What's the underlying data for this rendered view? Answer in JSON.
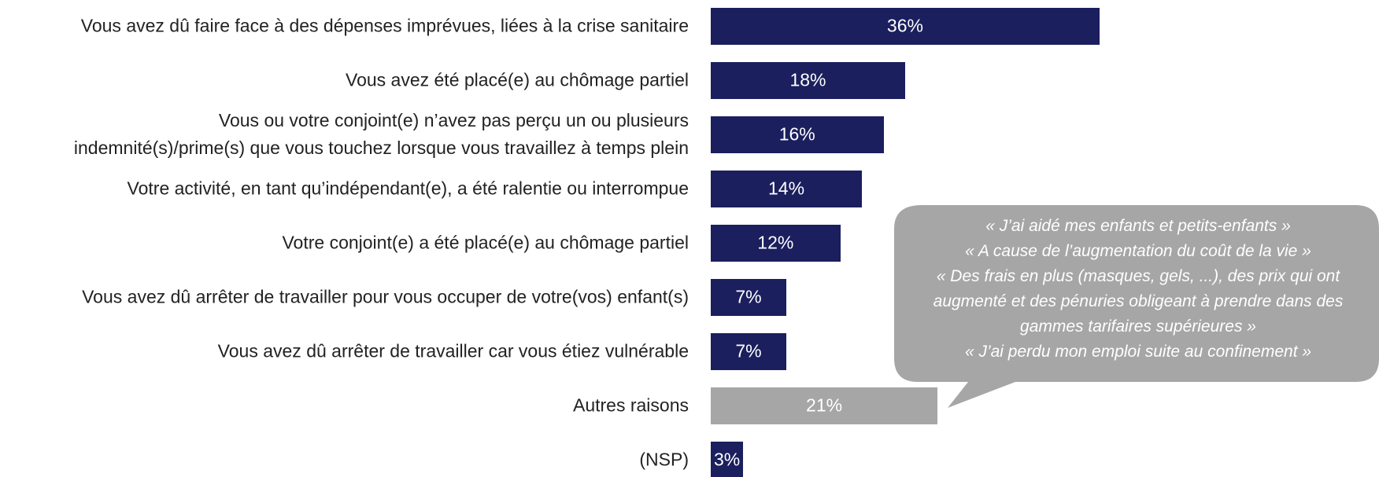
{
  "chart_data": {
    "type": "bar",
    "orientation": "horizontal",
    "categories": [
      "Vous avez dû faire face à des dépenses imprévues, liées à la crise sanitaire",
      "Vous avez été placé(e) au chômage partiel",
      "Vous ou votre conjoint(e) n’avez pas perçu un ou plusieurs\nindemnité(s)/prime(s) que vous touchez lorsque vous travaillez à temps plein",
      "Votre activité, en tant qu’indépendant(e), a été ralentie ou interrompue",
      "Votre conjoint(e) a été placé(e) au chômage partiel",
      "Vous avez dû arrêter de travailler pour vous occuper de votre(vos) enfant(s)",
      "Vous avez dû arrêter de travailler car vous étiez vulnérable",
      "Autres raisons",
      "(NSP)"
    ],
    "values": [
      36,
      18,
      16,
      14,
      12,
      7,
      7,
      21,
      3
    ],
    "value_labels": [
      "36%",
      "18%",
      "16%",
      "14%",
      "12%",
      "7%",
      "7%",
      "21%",
      "3%"
    ],
    "colors": [
      "#1b1f5e",
      "#1b1f5e",
      "#1b1f5e",
      "#1b1f5e",
      "#1b1f5e",
      "#1b1f5e",
      "#1b1f5e",
      "#a6a6a6",
      "#1b1f5e"
    ],
    "annotation": {
      "lines": [
        "« J’ai aidé mes enfants et petits-enfants »",
        "« A cause de l’augmentation du coût de la vie »",
        "« Des frais en plus (masques, gels, ...), des prix qui ont augmenté et des pénuries obligeant à prendre dans des gammes tarifaires supérieures »",
        "« J’ai perdu mon emploi suite au confinement »"
      ],
      "color": "#a6a6a6"
    }
  }
}
